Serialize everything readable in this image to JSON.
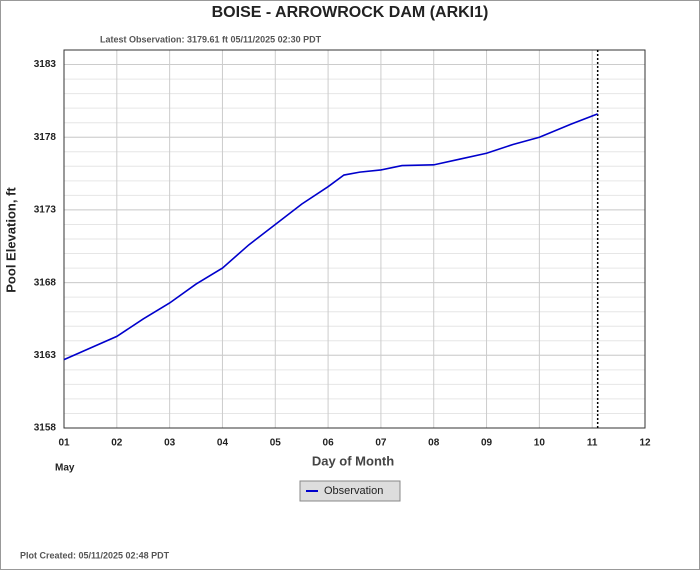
{
  "chart_data": {
    "type": "line",
    "title": "BOISE - ARROWROCK DAM  (ARKI1)",
    "subtitle": "Latest Observation: 3179.61 ft 05/11/2025 02:30 PDT",
    "x_label": "Day of Month",
    "x_sublabel": "May",
    "y_label": "Pool Elevation, ft",
    "footer": "Plot Created: 05/11/2025 02:48 PDT",
    "x": [
      1.0,
      1.5,
      2.0,
      2.5,
      3.0,
      3.5,
      4.0,
      4.5,
      5.0,
      5.5,
      6.0,
      6.3,
      6.6,
      7.0,
      7.4,
      8.0,
      8.5,
      9.0,
      9.5,
      10.0,
      10.6,
      11.104
    ],
    "series": [
      {
        "name": "Observation",
        "color": "#0000cc",
        "values": [
          3162.7,
          3163.5,
          3164.3,
          3165.5,
          3166.6,
          3167.9,
          3169.0,
          3170.6,
          3172.0,
          3173.4,
          3174.6,
          3175.4,
          3175.6,
          3175.75,
          3176.05,
          3176.1,
          3176.5,
          3176.9,
          3177.5,
          3178.0,
          3178.9,
          3179.61
        ]
      }
    ],
    "latest_x": 11.104,
    "xlim": [
      1,
      12
    ],
    "ylim": [
      3158,
      3184
    ],
    "xticks": [
      {
        "value": 1,
        "label": "01"
      },
      {
        "value": 2,
        "label": "02"
      },
      {
        "value": 3,
        "label": "03"
      },
      {
        "value": 4,
        "label": "04"
      },
      {
        "value": 5,
        "label": "05"
      },
      {
        "value": 6,
        "label": "06"
      },
      {
        "value": 7,
        "label": "07"
      },
      {
        "value": 8,
        "label": "08"
      },
      {
        "value": 9,
        "label": "09"
      },
      {
        "value": 10,
        "label": "10"
      },
      {
        "value": 11,
        "label": "11"
      },
      {
        "value": 12,
        "label": "12"
      }
    ],
    "yticks": [
      3158,
      3163,
      3168,
      3173,
      3178,
      3183
    ],
    "grid": true
  }
}
